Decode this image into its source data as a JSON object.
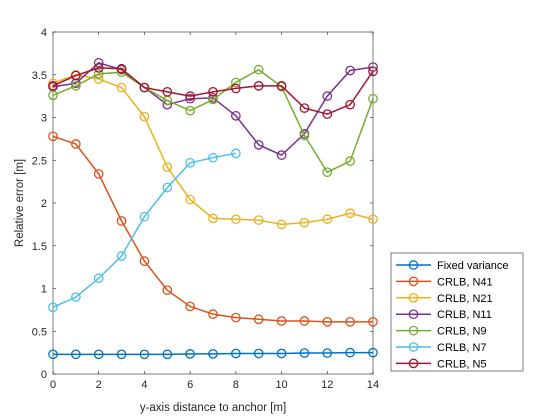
{
  "chart_data": {
    "type": "line",
    "xlabel": "y-axis distance to anchor [m]",
    "ylabel": "Relative error [m]",
    "xlim": [
      0,
      14
    ],
    "ylim": [
      0,
      4
    ],
    "xticks": [
      "0",
      "2",
      "4",
      "6",
      "8",
      "10",
      "12",
      "14"
    ],
    "yticks": [
      "0",
      "0.5",
      "1",
      "1.5",
      "2",
      "2.5",
      "3",
      "3.5",
      "4"
    ],
    "grid": false,
    "marker": "circle",
    "legend_position": "outside-bottom-right",
    "series": [
      {
        "name": "Fixed variance",
        "color": "#0072BD",
        "x": [
          0,
          1,
          2,
          3,
          4,
          5,
          6,
          7,
          8,
          9,
          10,
          11,
          12,
          13,
          14
        ],
        "y": [
          0.23,
          0.23,
          0.23,
          0.23,
          0.23,
          0.23,
          0.235,
          0.235,
          0.24,
          0.24,
          0.24,
          0.245,
          0.245,
          0.25,
          0.25
        ]
      },
      {
        "name": "CRLB, N41",
        "color": "#D95319",
        "x": [
          0,
          1,
          2,
          3,
          4,
          5,
          6,
          7,
          8,
          9,
          10,
          11,
          12,
          13,
          14
        ],
        "y": [
          2.78,
          2.69,
          2.34,
          1.79,
          1.32,
          0.98,
          0.79,
          0.7,
          0.66,
          0.64,
          0.62,
          0.62,
          0.61,
          0.61,
          0.61
        ]
      },
      {
        "name": "CRLB, N21",
        "color": "#EDB120",
        "x": [
          0,
          1,
          2,
          3,
          4,
          5,
          6,
          7,
          8,
          9,
          10,
          11,
          12,
          13,
          14
        ],
        "y": [
          3.4,
          3.5,
          3.45,
          3.35,
          3.01,
          2.42,
          2.04,
          1.82,
          1.81,
          1.8,
          1.75,
          1.77,
          1.81,
          1.88,
          1.81
        ]
      },
      {
        "name": "CRLB, N11",
        "color": "#7E2F8E",
        "x": [
          0,
          1,
          2,
          3,
          4,
          5,
          6,
          7,
          8,
          9,
          10,
          11,
          12,
          13,
          14
        ],
        "y": [
          3.36,
          3.4,
          3.64,
          3.56,
          3.35,
          3.15,
          3.22,
          3.23,
          3.02,
          2.68,
          2.56,
          2.81,
          3.25,
          3.55,
          3.59
        ]
      },
      {
        "name": "CRLB, N9",
        "color": "#77AC30",
        "x": [
          0,
          1,
          2,
          3,
          4,
          5,
          6,
          7,
          8,
          9,
          10,
          11,
          12,
          13,
          14
        ],
        "y": [
          3.26,
          3.37,
          3.51,
          3.53,
          3.35,
          3.2,
          3.08,
          3.21,
          3.41,
          3.56,
          3.36,
          2.79,
          2.36,
          2.49,
          3.22
        ]
      },
      {
        "name": "CRLB, N7",
        "color": "#4DBEEE",
        "x": [
          0,
          1,
          2,
          3,
          4,
          5,
          6,
          7,
          8
        ],
        "y": [
          0.78,
          0.9,
          1.12,
          1.38,
          1.84,
          2.18,
          2.47,
          2.53,
          2.58
        ]
      },
      {
        "name": "CRLB, N5",
        "color": "#A2142F",
        "x": [
          0,
          1,
          2,
          3,
          4,
          5,
          6,
          7,
          8,
          9,
          10,
          11,
          12,
          13,
          14
        ],
        "y": [
          3.37,
          3.49,
          3.58,
          3.57,
          3.35,
          3.3,
          3.25,
          3.3,
          3.34,
          3.37,
          3.37,
          3.11,
          3.04,
          3.15,
          3.54
        ]
      }
    ]
  }
}
